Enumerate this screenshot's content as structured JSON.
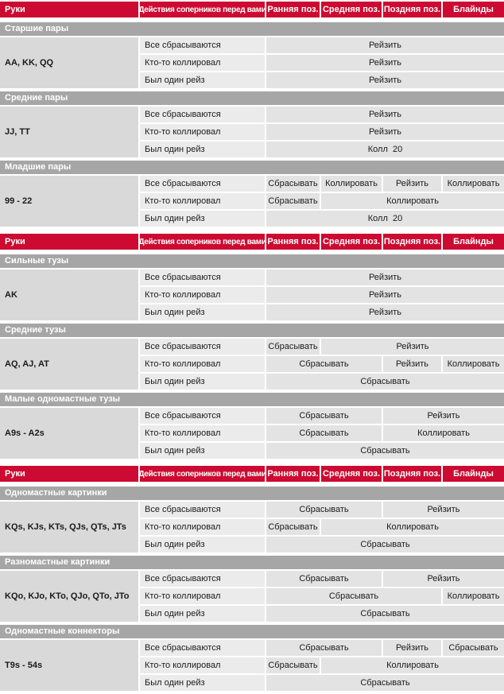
{
  "colors": {
    "header_red": "#cd0a31",
    "section_gray": "#a6a6a6",
    "hands_cell_gray": "#d9d9d9",
    "action_cell_gray": "#ebebeb",
    "decision_cell_gray": "#e3e3e3",
    "text": "#1a1a1a"
  },
  "columns": [
    "Руки",
    "Действия соперников перед вами",
    "Ранняя поз.",
    "Средняя поз.",
    "Поздняя поз.",
    "Блайнды"
  ],
  "tables": [
    {
      "sections": [
        {
          "title": "Старшие пары",
          "hands": "AA, KK, QQ",
          "rows": [
            {
              "action": "Все сбрасываются",
              "cells": [
                {
                  "label": "Рейзить",
                  "span": 4
                }
              ]
            },
            {
              "action": "Кто-то коллировал",
              "cells": [
                {
                  "label": "Рейзить",
                  "span": 4
                }
              ]
            },
            {
              "action": "Был один рейз",
              "cells": [
                {
                  "label": "Рейзить",
                  "span": 4
                }
              ]
            }
          ]
        },
        {
          "title": "Средние пары",
          "hands": "JJ, TT",
          "rows": [
            {
              "action": "Все сбрасываются",
              "cells": [
                {
                  "label": "Рейзить",
                  "span": 4
                }
              ]
            },
            {
              "action": "Кто-то коллировал",
              "cells": [
                {
                  "label": "Рейзить",
                  "span": 4
                }
              ]
            },
            {
              "action": "Был один рейз",
              "cells": [
                {
                  "label": "Колл  20",
                  "span": 4
                }
              ]
            }
          ]
        },
        {
          "title": "Младшие пары",
          "hands": "99 - 22",
          "rows": [
            {
              "action": "Все сбрасываются",
              "cells": [
                {
                  "label": "Сбрасывать",
                  "span": 1
                },
                {
                  "label": "Коллировать",
                  "span": 1
                },
                {
                  "label": "Рейзить",
                  "span": 1
                },
                {
                  "label": "Коллировать",
                  "span": 1
                }
              ]
            },
            {
              "action": "Кто-то коллировал",
              "cells": [
                {
                  "label": "Сбрасывать",
                  "span": 1
                },
                {
                  "label": "Коллировать",
                  "span": 3
                }
              ]
            },
            {
              "action": "Был один рейз",
              "cells": [
                {
                  "label": "Колл  20",
                  "span": 4
                }
              ]
            }
          ]
        }
      ]
    },
    {
      "sections": [
        {
          "title": "Сильные тузы",
          "hands": "AK",
          "rows": [
            {
              "action": "Все сбрасываются",
              "cells": [
                {
                  "label": "Рейзить",
                  "span": 4
                }
              ]
            },
            {
              "action": "Кто-то коллировал",
              "cells": [
                {
                  "label": "Рейзить",
                  "span": 4
                }
              ]
            },
            {
              "action": "Был один рейз",
              "cells": [
                {
                  "label": "Рейзить",
                  "span": 4
                }
              ]
            }
          ]
        },
        {
          "title": "Средние тузы",
          "hands": "AQ, AJ, AT",
          "rows": [
            {
              "action": "Все сбрасываются",
              "cells": [
                {
                  "label": "Сбрасывать",
                  "span": 1
                },
                {
                  "label": "Рейзить",
                  "span": 3
                }
              ]
            },
            {
              "action": "Кто-то коллировал",
              "cells": [
                {
                  "label": "Сбрасывать",
                  "span": 2
                },
                {
                  "label": "Рейзить",
                  "span": 1
                },
                {
                  "label": "Коллировать",
                  "span": 1
                }
              ]
            },
            {
              "action": "Был один рейз",
              "cells": [
                {
                  "label": "Сбрасывать",
                  "span": 4
                }
              ]
            }
          ]
        },
        {
          "title": "Малые одномастные тузы",
          "hands": "A9s - A2s",
          "rows": [
            {
              "action": "Все сбрасываются",
              "cells": [
                {
                  "label": "Сбрасывать",
                  "span": 2
                },
                {
                  "label": "Рейзить",
                  "span": 2
                }
              ]
            },
            {
              "action": "Кто-то коллировал",
              "cells": [
                {
                  "label": "Сбрасывать",
                  "span": 2
                },
                {
                  "label": "Коллировать",
                  "span": 2
                }
              ]
            },
            {
              "action": "Был один рейз",
              "cells": [
                {
                  "label": "Сбрасывать",
                  "span": 4
                }
              ]
            }
          ]
        }
      ]
    },
    {
      "sections": [
        {
          "title": "Одномастные картинки",
          "hands": "KQs, KJs, KTs, QJs, QTs, JTs",
          "rows": [
            {
              "action": "Все сбрасываются",
              "cells": [
                {
                  "label": "Сбрасывать",
                  "span": 2
                },
                {
                  "label": "Рейзить",
                  "span": 2
                }
              ]
            },
            {
              "action": "Кто-то коллировал",
              "cells": [
                {
                  "label": "Сбрасывать",
                  "span": 1
                },
                {
                  "label": "Коллировать",
                  "span": 3
                }
              ]
            },
            {
              "action": "Был один рейз",
              "cells": [
                {
                  "label": "Сбрасывать",
                  "span": 4
                }
              ]
            }
          ]
        },
        {
          "title": "Разномастные картинки",
          "hands": "KQo, KJo, KTo, QJo, QTo, JTo",
          "rows": [
            {
              "action": "Все сбрасываются",
              "cells": [
                {
                  "label": "Сбрасывать",
                  "span": 2
                },
                {
                  "label": "Рейзить",
                  "span": 2
                }
              ]
            },
            {
              "action": "Кто-то коллировал",
              "cells": [
                {
                  "label": "Сбрасывать",
                  "span": 3
                },
                {
                  "label": "Коллировать",
                  "span": 1
                }
              ]
            },
            {
              "action": "Был один рейз",
              "cells": [
                {
                  "label": "Сбрасывать",
                  "span": 4
                }
              ]
            }
          ]
        },
        {
          "title": "Одномастные коннекторы",
          "hands": "T9s - 54s",
          "rows": [
            {
              "action": "Все сбрасываются",
              "cells": [
                {
                  "label": "Сбрасывать",
                  "span": 2
                },
                {
                  "label": "Рейзить",
                  "span": 1
                },
                {
                  "label": "Сбрасывать",
                  "span": 1
                }
              ]
            },
            {
              "action": "Кто-то коллировал",
              "cells": [
                {
                  "label": "Сбрасывать",
                  "span": 1
                },
                {
                  "label": "Коллировать",
                  "span": 3
                }
              ]
            },
            {
              "action": "Был один рейз",
              "cells": [
                {
                  "label": "Сбрасывать",
                  "span": 4
                }
              ]
            }
          ]
        }
      ]
    }
  ]
}
